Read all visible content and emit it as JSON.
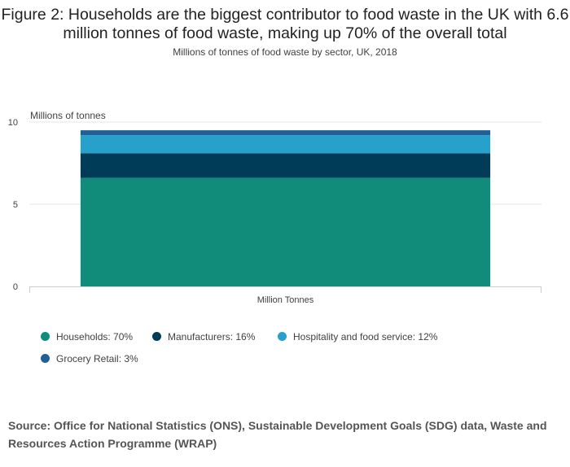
{
  "chart_data": {
    "type": "bar",
    "stacked": true,
    "title": "Figure 2: Households are the biggest contributor to food waste in the UK with 6.6 million tonnes of food waste, making up 70% of the overall total",
    "subtitle": "Millions of tonnes of food waste by sector, UK, 2018",
    "ylabel": "Millions of tonnes",
    "categories": [
      "Million Tonnes"
    ],
    "ylim": [
      0,
      10
    ],
    "yticks": [
      0,
      5,
      10
    ],
    "grid": true,
    "legend_position": "bottom-left",
    "series": [
      {
        "name": "Households: 70%",
        "values": [
          6.6
        ],
        "color": "#118c7b"
      },
      {
        "name": "Manufacturers: 16%",
        "values": [
          1.5
        ],
        "color": "#003c57"
      },
      {
        "name": "Hospitality and food service: 12%",
        "values": [
          1.1
        ],
        "color": "#27a0cc"
      },
      {
        "name": "Grocery Retail: 3%",
        "values": [
          0.3
        ],
        "color": "#206095"
      }
    ]
  },
  "source": "Source: Office for National Statistics (ONS), Sustainable Development Goals (SDG) data, Waste and Resources Action Programme (WRAP)"
}
